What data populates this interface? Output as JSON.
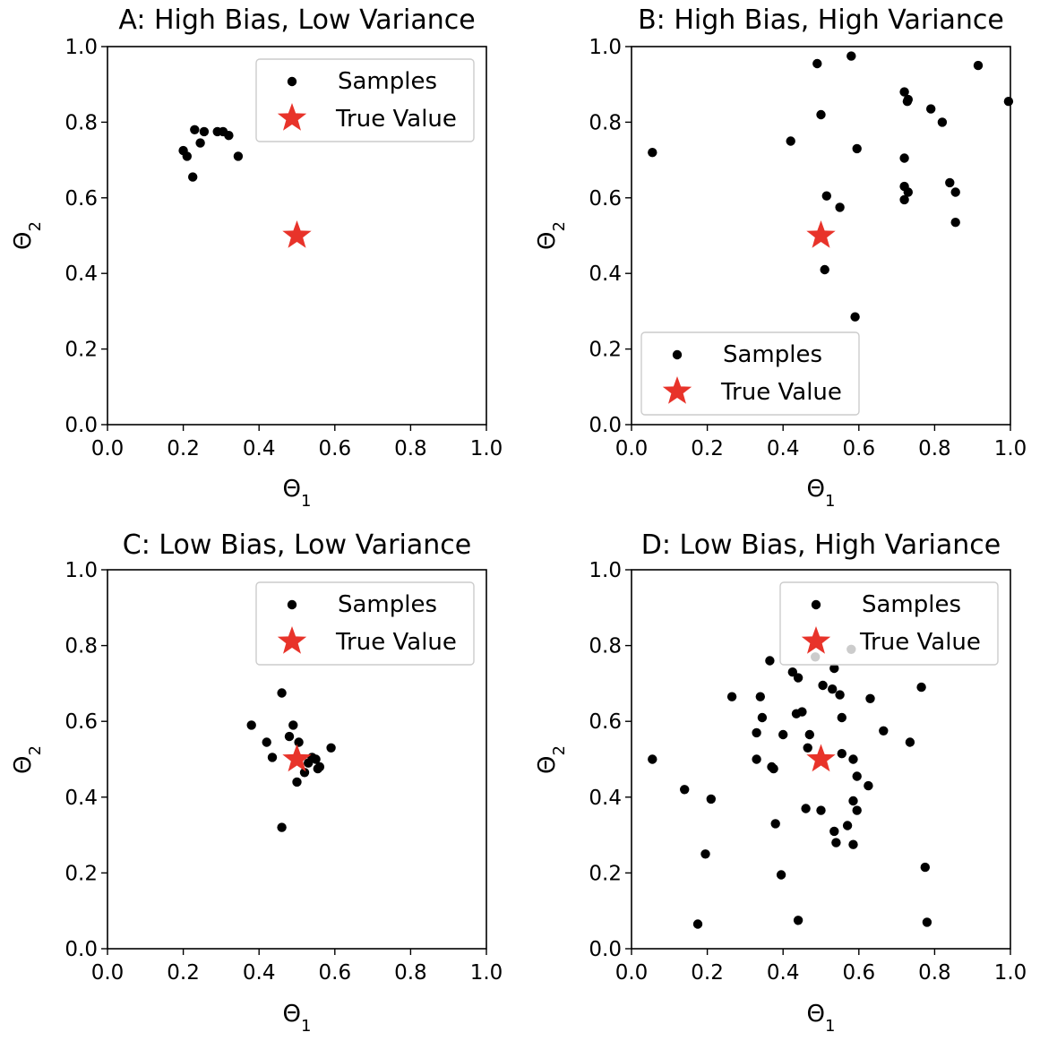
{
  "colors": {
    "samples": "#000000",
    "true_value": "#e8332a",
    "legend_border": "#cccccc"
  },
  "chart_data": [
    {
      "type": "scatter",
      "title": "A: High Bias, Low Variance",
      "xlabel": "Θ1",
      "ylabel": "Θ2",
      "xlim": [
        0,
        1
      ],
      "ylim": [
        0,
        1
      ],
      "xticks": [
        "0.0",
        "0.2",
        "0.4",
        "0.6",
        "0.8",
        "1.0"
      ],
      "yticks": [
        "0.0",
        "0.2",
        "0.4",
        "0.6",
        "0.8",
        "1.0"
      ],
      "legend_position": "upper right",
      "legend": [
        "Samples",
        "True Value"
      ],
      "true_value": [
        0.5,
        0.5
      ],
      "samples": [
        [
          0.23,
          0.78
        ],
        [
          0.255,
          0.775
        ],
        [
          0.29,
          0.775
        ],
        [
          0.305,
          0.775
        ],
        [
          0.32,
          0.765
        ],
        [
          0.245,
          0.745
        ],
        [
          0.2,
          0.725
        ],
        [
          0.21,
          0.71
        ],
        [
          0.345,
          0.71
        ],
        [
          0.225,
          0.655
        ]
      ]
    },
    {
      "type": "scatter",
      "title": "B: High Bias, High Variance",
      "xlabel": "Θ1",
      "ylabel": "Θ2",
      "xlim": [
        0,
        1
      ],
      "ylim": [
        0,
        1
      ],
      "xticks": [
        "0.0",
        "0.2",
        "0.4",
        "0.6",
        "0.8",
        "1.0"
      ],
      "yticks": [
        "0.0",
        "0.2",
        "0.4",
        "0.6",
        "0.8",
        "1.0"
      ],
      "legend_position": "lower left",
      "legend": [
        "Samples",
        "True Value"
      ],
      "true_value": [
        0.5,
        0.5
      ],
      "samples": [
        [
          0.58,
          0.975
        ],
        [
          0.49,
          0.955
        ],
        [
          0.915,
          0.95
        ],
        [
          0.72,
          0.88
        ],
        [
          0.73,
          0.86
        ],
        [
          0.728,
          0.855
        ],
        [
          0.995,
          0.855
        ],
        [
          0.79,
          0.835
        ],
        [
          0.5,
          0.82
        ],
        [
          0.82,
          0.8
        ],
        [
          0.42,
          0.75
        ],
        [
          0.595,
          0.73
        ],
        [
          0.055,
          0.72
        ],
        [
          0.72,
          0.705
        ],
        [
          0.84,
          0.64
        ],
        [
          0.72,
          0.63
        ],
        [
          0.73,
          0.615
        ],
        [
          0.855,
          0.615
        ],
        [
          0.515,
          0.605
        ],
        [
          0.72,
          0.595
        ],
        [
          0.55,
          0.575
        ],
        [
          0.855,
          0.535
        ],
        [
          0.51,
          0.41
        ],
        [
          0.59,
          0.285
        ]
      ]
    },
    {
      "type": "scatter",
      "title": "C: Low Bias, Low Variance",
      "xlabel": "Θ1",
      "ylabel": "Θ2",
      "xlim": [
        0,
        1
      ],
      "ylim": [
        0,
        1
      ],
      "xticks": [
        "0.0",
        "0.2",
        "0.4",
        "0.6",
        "0.8",
        "1.0"
      ],
      "yticks": [
        "0.0",
        "0.2",
        "0.4",
        "0.6",
        "0.8",
        "1.0"
      ],
      "legend_position": "upper right",
      "legend": [
        "Samples",
        "True Value"
      ],
      "true_value": [
        0.5,
        0.5
      ],
      "samples": [
        [
          0.46,
          0.675
        ],
        [
          0.38,
          0.59
        ],
        [
          0.49,
          0.59
        ],
        [
          0.48,
          0.56
        ],
        [
          0.505,
          0.545
        ],
        [
          0.42,
          0.545
        ],
        [
          0.59,
          0.53
        ],
        [
          0.435,
          0.505
        ],
        [
          0.54,
          0.505
        ],
        [
          0.55,
          0.5
        ],
        [
          0.53,
          0.49
        ],
        [
          0.56,
          0.48
        ],
        [
          0.555,
          0.475
        ],
        [
          0.52,
          0.465
        ],
        [
          0.5,
          0.44
        ],
        [
          0.46,
          0.32
        ]
      ]
    },
    {
      "type": "scatter",
      "title": "D: Low Bias, High Variance",
      "xlabel": "Θ1",
      "ylabel": "Θ2",
      "xlim": [
        0,
        1
      ],
      "ylim": [
        0,
        1
      ],
      "xticks": [
        "0.0",
        "0.2",
        "0.4",
        "0.6",
        "0.8",
        "1.0"
      ],
      "yticks": [
        "0.0",
        "0.2",
        "0.4",
        "0.6",
        "0.8",
        "1.0"
      ],
      "legend_position": "upper right",
      "legend": [
        "Samples",
        "True Value"
      ],
      "true_value": [
        0.5,
        0.5
      ],
      "samples": [
        [
          0.485,
          0.77
        ],
        [
          0.58,
          0.79
        ],
        [
          0.365,
          0.76
        ],
        [
          0.535,
          0.74
        ],
        [
          0.425,
          0.73
        ],
        [
          0.44,
          0.715
        ],
        [
          0.505,
          0.695
        ],
        [
          0.53,
          0.685
        ],
        [
          0.55,
          0.67
        ],
        [
          0.765,
          0.69
        ],
        [
          0.265,
          0.665
        ],
        [
          0.34,
          0.665
        ],
        [
          0.63,
          0.66
        ],
        [
          0.435,
          0.62
        ],
        [
          0.45,
          0.625
        ],
        [
          0.345,
          0.61
        ],
        [
          0.555,
          0.61
        ],
        [
          0.665,
          0.575
        ],
        [
          0.33,
          0.57
        ],
        [
          0.4,
          0.565
        ],
        [
          0.47,
          0.565
        ],
        [
          0.735,
          0.545
        ],
        [
          0.465,
          0.53
        ],
        [
          0.055,
          0.5
        ],
        [
          0.33,
          0.5
        ],
        [
          0.585,
          0.5
        ],
        [
          0.37,
          0.48
        ],
        [
          0.375,
          0.475
        ],
        [
          0.595,
          0.455
        ],
        [
          0.625,
          0.43
        ],
        [
          0.14,
          0.42
        ],
        [
          0.21,
          0.395
        ],
        [
          0.585,
          0.39
        ],
        [
          0.46,
          0.37
        ],
        [
          0.5,
          0.365
        ],
        [
          0.595,
          0.365
        ],
        [
          0.38,
          0.33
        ],
        [
          0.57,
          0.325
        ],
        [
          0.535,
          0.31
        ],
        [
          0.54,
          0.28
        ],
        [
          0.585,
          0.275
        ],
        [
          0.195,
          0.25
        ],
        [
          0.775,
          0.215
        ],
        [
          0.395,
          0.195
        ],
        [
          0.175,
          0.065
        ],
        [
          0.44,
          0.075
        ],
        [
          0.78,
          0.07
        ],
        [
          0.555,
          0.515
        ]
      ]
    }
  ]
}
